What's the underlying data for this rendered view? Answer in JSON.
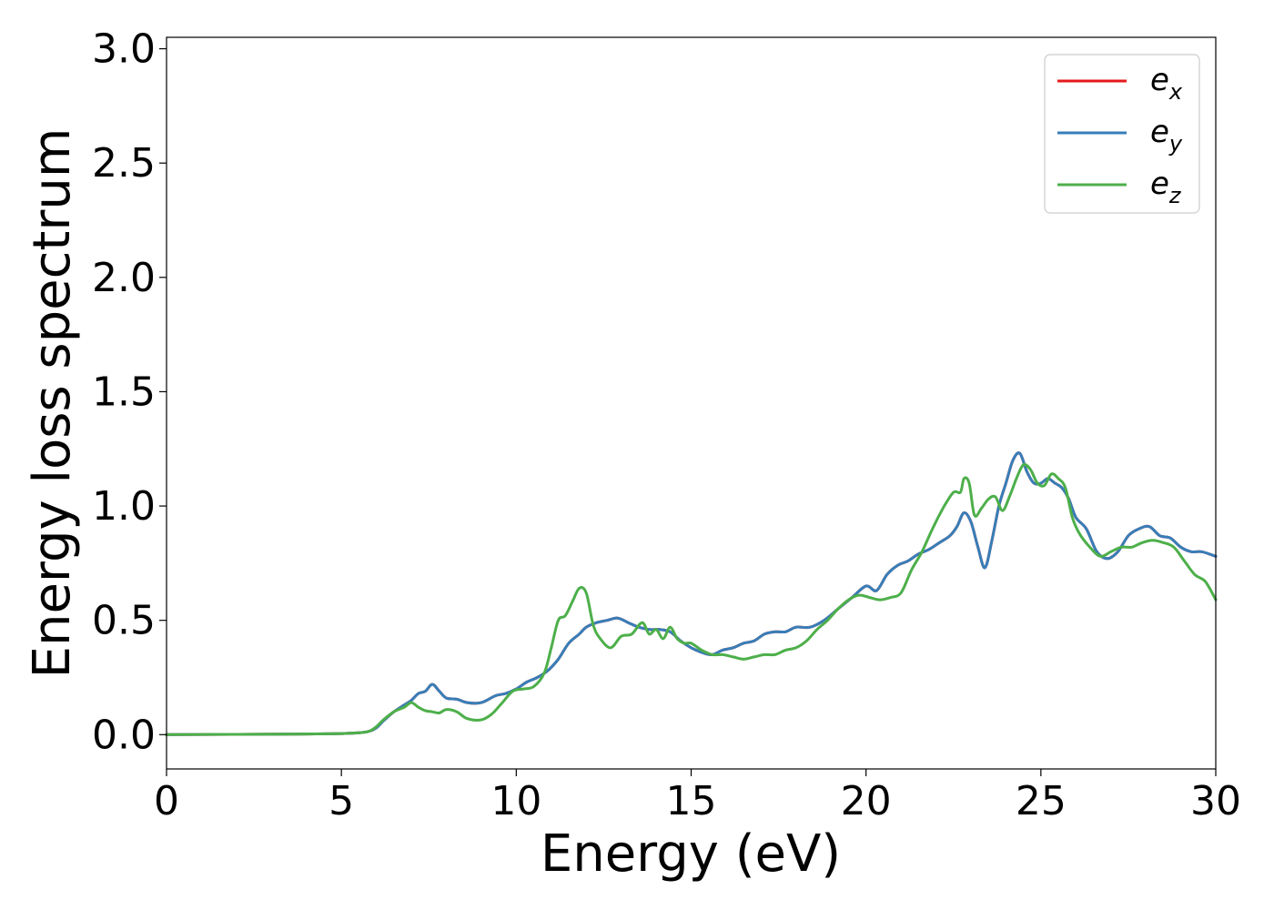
{
  "chart_data": {
    "type": "line",
    "xlabel": "Energy (eV)",
    "ylabel": "Energy loss spectrum",
    "xlim": [
      0,
      30
    ],
    "ylim": [
      -0.15,
      3.05
    ],
    "xticks": [
      0,
      5,
      10,
      15,
      20,
      25,
      30
    ],
    "xtick_labels": [
      "0",
      "5",
      "10",
      "15",
      "20",
      "25",
      "30"
    ],
    "yticks": [
      0.0,
      0.5,
      1.0,
      1.5,
      2.0,
      2.5,
      3.0
    ],
    "ytick_labels": [
      "0.0",
      "0.5",
      "1.0",
      "1.5",
      "2.0",
      "2.5",
      "3.0"
    ],
    "grid": false,
    "legend_position": "top-right",
    "series": [
      {
        "name": "e_x",
        "label_base": "e",
        "label_sub": "x",
        "color": "#e41a1c",
        "x": [
          0,
          4,
          5,
          5.5,
          5.8,
          6,
          6.2,
          6.5,
          6.8,
          7,
          7.2,
          7.4,
          7.6,
          7.8,
          8,
          8.3,
          8.6,
          9,
          9.4,
          9.7,
          10,
          10.3,
          10.6,
          10.9,
          11.2,
          11.5,
          11.8,
          12,
          12.3,
          12.6,
          12.9,
          13.2,
          13.5,
          13.8,
          14.1,
          14.4,
          14.7,
          15,
          15.3,
          15.6,
          15.9,
          16.2,
          16.5,
          16.8,
          17.1,
          17.4,
          17.7,
          18,
          18.4,
          18.8,
          19.2,
          19.6,
          20,
          20.3,
          20.6,
          20.9,
          21.2,
          21.5,
          21.8,
          22.1,
          22.4,
          22.6,
          22.8,
          23,
          23.2,
          23.4,
          23.6,
          23.8,
          24,
          24.2,
          24.4,
          24.6,
          24.8,
          25,
          25.2,
          25.4,
          25.6,
          25.8,
          26,
          26.3,
          26.6,
          26.9,
          27.2,
          27.5,
          27.8,
          28.1,
          28.4,
          28.7,
          29,
          29.3,
          29.6,
          30
        ],
        "y": [
          0.0,
          0.003,
          0.005,
          0.008,
          0.015,
          0.03,
          0.06,
          0.1,
          0.13,
          0.15,
          0.18,
          0.19,
          0.22,
          0.19,
          0.16,
          0.155,
          0.14,
          0.14,
          0.17,
          0.18,
          0.2,
          0.23,
          0.25,
          0.28,
          0.33,
          0.4,
          0.44,
          0.47,
          0.49,
          0.5,
          0.51,
          0.49,
          0.47,
          0.46,
          0.46,
          0.45,
          0.41,
          0.38,
          0.36,
          0.35,
          0.37,
          0.38,
          0.4,
          0.41,
          0.44,
          0.45,
          0.45,
          0.47,
          0.47,
          0.5,
          0.55,
          0.6,
          0.65,
          0.63,
          0.7,
          0.74,
          0.76,
          0.79,
          0.81,
          0.84,
          0.87,
          0.91,
          0.97,
          0.93,
          0.82,
          0.73,
          0.85,
          1.0,
          1.1,
          1.2,
          1.23,
          1.15,
          1.1,
          1.1,
          1.12,
          1.1,
          1.08,
          1.03,
          0.95,
          0.9,
          0.8,
          0.77,
          0.8,
          0.87,
          0.9,
          0.91,
          0.87,
          0.86,
          0.82,
          0.8,
          0.8,
          0.78
        ]
      },
      {
        "name": "e_y",
        "label_base": "e",
        "label_sub": "y",
        "color": "#377eb8",
        "x": [
          0,
          4,
          5,
          5.5,
          5.8,
          6,
          6.2,
          6.5,
          6.8,
          7,
          7.2,
          7.4,
          7.6,
          7.8,
          8,
          8.3,
          8.6,
          9,
          9.4,
          9.7,
          10,
          10.3,
          10.6,
          10.9,
          11.2,
          11.5,
          11.8,
          12,
          12.3,
          12.6,
          12.9,
          13.2,
          13.5,
          13.8,
          14.1,
          14.4,
          14.7,
          15,
          15.3,
          15.6,
          15.9,
          16.2,
          16.5,
          16.8,
          17.1,
          17.4,
          17.7,
          18,
          18.4,
          18.8,
          19.2,
          19.6,
          20,
          20.3,
          20.6,
          20.9,
          21.2,
          21.5,
          21.8,
          22.1,
          22.4,
          22.6,
          22.8,
          23,
          23.2,
          23.4,
          23.6,
          23.8,
          24,
          24.2,
          24.4,
          24.6,
          24.8,
          25,
          25.2,
          25.4,
          25.6,
          25.8,
          26,
          26.3,
          26.6,
          26.9,
          27.2,
          27.5,
          27.8,
          28.1,
          28.4,
          28.7,
          29,
          29.3,
          29.6,
          30
        ],
        "y": [
          0.0,
          0.003,
          0.005,
          0.008,
          0.015,
          0.03,
          0.06,
          0.1,
          0.13,
          0.15,
          0.18,
          0.19,
          0.22,
          0.19,
          0.16,
          0.155,
          0.14,
          0.14,
          0.17,
          0.18,
          0.2,
          0.23,
          0.25,
          0.28,
          0.33,
          0.4,
          0.44,
          0.47,
          0.49,
          0.5,
          0.51,
          0.49,
          0.47,
          0.46,
          0.46,
          0.45,
          0.41,
          0.38,
          0.36,
          0.35,
          0.37,
          0.38,
          0.4,
          0.41,
          0.44,
          0.45,
          0.45,
          0.47,
          0.47,
          0.5,
          0.55,
          0.6,
          0.65,
          0.63,
          0.7,
          0.74,
          0.76,
          0.79,
          0.81,
          0.84,
          0.87,
          0.91,
          0.97,
          0.93,
          0.82,
          0.73,
          0.85,
          1.0,
          1.1,
          1.2,
          1.23,
          1.15,
          1.1,
          1.1,
          1.12,
          1.1,
          1.08,
          1.03,
          0.95,
          0.9,
          0.8,
          0.77,
          0.8,
          0.87,
          0.9,
          0.91,
          0.87,
          0.86,
          0.82,
          0.8,
          0.8,
          0.78
        ]
      },
      {
        "name": "e_z",
        "label_base": "e",
        "label_sub": "z",
        "color": "#4daf4a",
        "x": [
          0,
          4,
          5,
          5.5,
          5.8,
          6,
          6.2,
          6.5,
          6.8,
          7,
          7.2,
          7.4,
          7.6,
          7.8,
          8,
          8.3,
          8.6,
          9,
          9.3,
          9.6,
          9.9,
          10.2,
          10.5,
          10.8,
          11,
          11.2,
          11.4,
          11.6,
          11.8,
          12,
          12.2,
          12.4,
          12.7,
          13,
          13.3,
          13.6,
          13.8,
          14,
          14.2,
          14.4,
          14.6,
          14.8,
          15,
          15.3,
          15.6,
          15.9,
          16.2,
          16.5,
          16.8,
          17.1,
          17.4,
          17.7,
          18,
          18.3,
          18.6,
          18.9,
          19.2,
          19.5,
          19.8,
          20.1,
          20.4,
          20.7,
          21,
          21.3,
          21.6,
          21.9,
          22.2,
          22.5,
          22.7,
          22.8,
          22.95,
          23.1,
          23.3,
          23.5,
          23.7,
          23.9,
          24.1,
          24.3,
          24.5,
          24.7,
          24.9,
          25.1,
          25.3,
          25.5,
          25.7,
          25.9,
          26.1,
          26.4,
          26.7,
          27,
          27.3,
          27.6,
          27.9,
          28.2,
          28.5,
          28.8,
          29.1,
          29.4,
          29.7,
          30
        ],
        "y": [
          0.0,
          0.003,
          0.005,
          0.008,
          0.015,
          0.035,
          0.065,
          0.1,
          0.12,
          0.14,
          0.12,
          0.105,
          0.1,
          0.095,
          0.11,
          0.1,
          0.07,
          0.065,
          0.09,
          0.14,
          0.19,
          0.2,
          0.21,
          0.27,
          0.38,
          0.5,
          0.52,
          0.58,
          0.64,
          0.62,
          0.48,
          0.42,
          0.38,
          0.43,
          0.44,
          0.49,
          0.44,
          0.46,
          0.42,
          0.47,
          0.42,
          0.4,
          0.4,
          0.37,
          0.35,
          0.35,
          0.34,
          0.33,
          0.34,
          0.35,
          0.35,
          0.37,
          0.38,
          0.41,
          0.46,
          0.5,
          0.55,
          0.59,
          0.61,
          0.6,
          0.59,
          0.6,
          0.62,
          0.72,
          0.8,
          0.9,
          0.99,
          1.06,
          1.06,
          1.12,
          1.1,
          0.96,
          0.99,
          1.03,
          1.04,
          0.98,
          1.04,
          1.12,
          1.18,
          1.16,
          1.1,
          1.09,
          1.14,
          1.12,
          1.08,
          0.95,
          0.88,
          0.82,
          0.78,
          0.8,
          0.82,
          0.82,
          0.84,
          0.85,
          0.84,
          0.82,
          0.76,
          0.7,
          0.67,
          0.59
        ]
      }
    ]
  }
}
